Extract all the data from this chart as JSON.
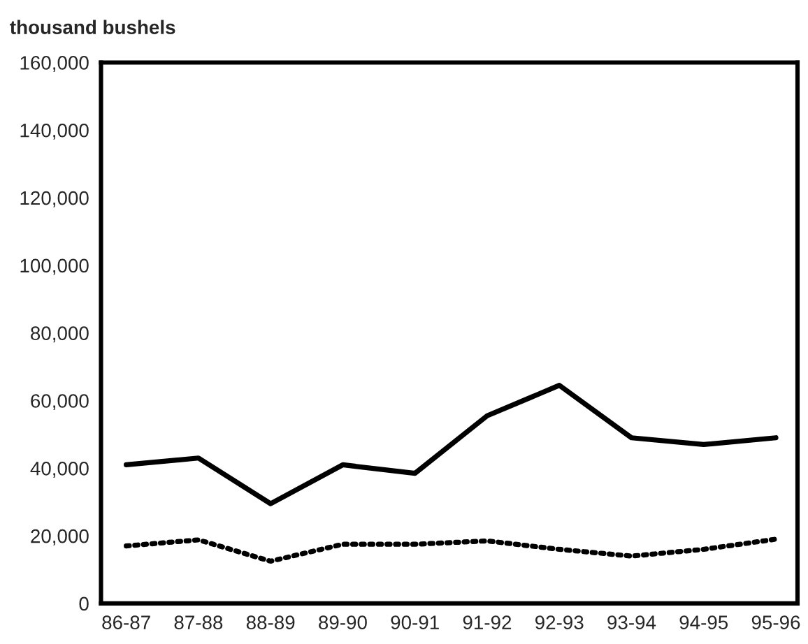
{
  "chart_data": {
    "type": "line",
    "ylabel": "thousand bushels",
    "categories": [
      "86-87",
      "87-88",
      "88-89",
      "89-90",
      "90-91",
      "91-92",
      "92-93",
      "93-94",
      "94-95",
      "95-96"
    ],
    "series": [
      {
        "color": "#000000",
        "line_style": "solid",
        "values": [
          41000,
          43000,
          29500,
          41000,
          38500,
          55500,
          64500,
          49000,
          47000,
          49000
        ]
      },
      {
        "color": "#000000",
        "line_style": "dotted",
        "values": [
          17000,
          18800,
          12500,
          17500,
          17500,
          18500,
          16000,
          14000,
          16000,
          19000
        ]
      }
    ],
    "ylim": [
      0,
      160000
    ],
    "yticks": [
      {
        "value": 0,
        "label": "0"
      },
      {
        "value": 20000,
        "label": "20,000"
      },
      {
        "value": 40000,
        "label": "40,000"
      },
      {
        "value": 60000,
        "label": "60,000"
      },
      {
        "value": 80000,
        "label": "80,000"
      },
      {
        "value": 100000,
        "label": "100,000"
      },
      {
        "value": 120000,
        "label": "120,000"
      },
      {
        "value": 140000,
        "label": "140,000"
      },
      {
        "value": 160000,
        "label": "160,000"
      }
    ],
    "grid": false
  }
}
